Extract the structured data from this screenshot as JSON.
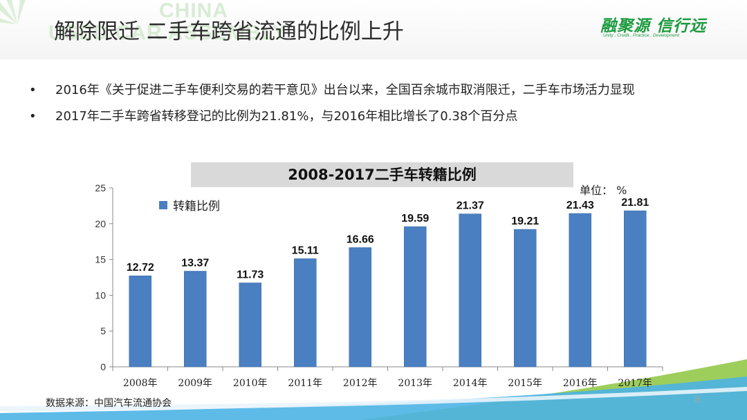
{
  "header": {
    "title": "解除限迁  二手车跨省流通的比例上升",
    "watermark_line1": "CHINA",
    "watermark_line2": "USED CAR ASSEMBLY",
    "logo_main": "融聚源 信行远",
    "logo_sub": "Unity , Credit , Practice , Development"
  },
  "bullets": [
    "2016年《关于促进二手车便利交易的若干意见》出台以来，全国百余城市取消限迁，二手车市场活力显现",
    "2017年二手车跨省转移登记的比例为21.81%，与2016年相比增长了0.38个百分点"
  ],
  "chart_unit": "单位：  %",
  "footer": {
    "source": "数据来源：中国汽车流通协会",
    "page": "8"
  },
  "colors": {
    "bar": "#4a7fc1",
    "bar_stroke": "#3b6aa6",
    "title_bg": "#d9d9d9",
    "brand_green": "#1c9a3e",
    "wave_blue": "#4cb3e3",
    "wave_green": "#8cc63f"
  },
  "chart_data": {
    "type": "bar",
    "title": "2008-2017二手车转籍比例",
    "categories": [
      "2008年",
      "2009年",
      "2010年",
      "2011年",
      "2012年",
      "2013年",
      "2014年",
      "2015年",
      "2016年",
      "2017年"
    ],
    "series": [
      {
        "name": "转籍比例",
        "values": [
          12.72,
          13.37,
          11.73,
          15.11,
          16.66,
          19.59,
          21.37,
          19.21,
          21.43,
          21.81
        ]
      }
    ],
    "data_labels": [
      "12.72",
      "13.37",
      "11.73",
      "15.11",
      "16.66",
      "19.59",
      "21.37",
      "19.21",
      "21.43",
      "21.81"
    ],
    "yticks": [
      "0",
      "5",
      "10",
      "15",
      "20",
      "25"
    ],
    "ylim": [
      0,
      25
    ],
    "grid": false,
    "legend_position": "top-left"
  }
}
